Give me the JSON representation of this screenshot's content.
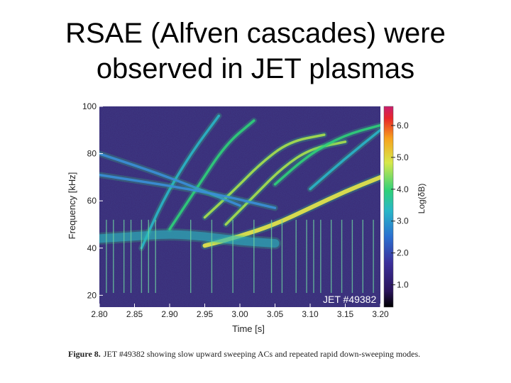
{
  "slide": {
    "title_line1": "RSAE (Alfven cascades) were",
    "title_line2": "observed in JET plasmas"
  },
  "caption": {
    "label": "Figure 8.",
    "text": "JET #49382 showing slow upward sweeping ACs and repeated rapid down-sweeping modes."
  },
  "colors": {
    "background": "#3b2f7a",
    "mode_green": "#2fd07a",
    "mode_yellow": "#e8e84a",
    "mode_cyan": "#3aa9d8"
  },
  "chart_data": {
    "type": "heatmap",
    "title": "",
    "xlabel": "Time [s]",
    "ylabel": "Frequency [kHz]",
    "xlim": [
      2.8,
      3.2
    ],
    "ylim": [
      15,
      100
    ],
    "x_ticks": [
      "2.80",
      "2.85",
      "2.90",
      "2.95",
      "3.00",
      "3.05",
      "3.10",
      "3.15",
      "3.20"
    ],
    "y_ticks": [
      "20",
      "40",
      "60",
      "80",
      "100"
    ],
    "colorbar": {
      "label": "Log(δB)",
      "range": [
        0.3,
        6.6
      ],
      "ticks": [
        "1.0",
        "2.0",
        "3.0",
        "4.0",
        "5.0",
        "6.0"
      ]
    },
    "annotation": "JET #49382",
    "modes": [
      {
        "kind": "upward-sweep",
        "points": [
          [
            2.95,
            41
          ],
          [
            3.0,
            45
          ],
          [
            3.05,
            50
          ],
          [
            3.1,
            57
          ],
          [
            3.15,
            64
          ],
          [
            3.2,
            70
          ]
        ],
        "intensity": 4.6
      },
      {
        "kind": "upward-sweep",
        "points": [
          [
            2.98,
            50
          ],
          [
            3.02,
            62
          ],
          [
            3.06,
            74
          ],
          [
            3.1,
            82
          ],
          [
            3.15,
            85
          ]
        ],
        "intensity": 4.0
      },
      {
        "kind": "upward-sweep",
        "points": [
          [
            2.95,
            53
          ],
          [
            2.99,
            64
          ],
          [
            3.03,
            76
          ],
          [
            3.07,
            85
          ],
          [
            3.12,
            88
          ]
        ],
        "intensity": 3.8
      },
      {
        "kind": "upward-sweep",
        "points": [
          [
            2.9,
            48
          ],
          [
            2.94,
            66
          ],
          [
            2.98,
            84
          ],
          [
            3.02,
            94
          ]
        ],
        "intensity": 3.6
      },
      {
        "kind": "upward-sweep",
        "points": [
          [
            3.05,
            67
          ],
          [
            3.1,
            80
          ],
          [
            3.15,
            88
          ],
          [
            3.2,
            92
          ]
        ],
        "intensity": 3.5
      },
      {
        "kind": "upward-sweep",
        "points": [
          [
            3.1,
            65
          ],
          [
            3.15,
            78
          ],
          [
            3.2,
            90
          ]
        ],
        "intensity": 3.2
      },
      {
        "kind": "upward-sweep",
        "points": [
          [
            2.86,
            40
          ],
          [
            2.89,
            60
          ],
          [
            2.93,
            80
          ],
          [
            2.97,
            96
          ]
        ],
        "intensity": 3.0
      },
      {
        "kind": "down-sweep",
        "points": [
          [
            2.8,
            80
          ],
          [
            2.9,
            70
          ],
          [
            3.0,
            58
          ]
        ],
        "intensity": 2.6
      },
      {
        "kind": "down-sweep",
        "points": [
          [
            2.8,
            71
          ],
          [
            2.95,
            64
          ],
          [
            3.05,
            57
          ]
        ],
        "intensity": 2.4
      },
      {
        "kind": "band",
        "points": [
          [
            2.8,
            44
          ],
          [
            2.85,
            45
          ],
          [
            2.9,
            46
          ],
          [
            2.95,
            45
          ],
          [
            3.0,
            43
          ],
          [
            3.05,
            42
          ]
        ],
        "intensity": 3.2
      }
    ]
  }
}
